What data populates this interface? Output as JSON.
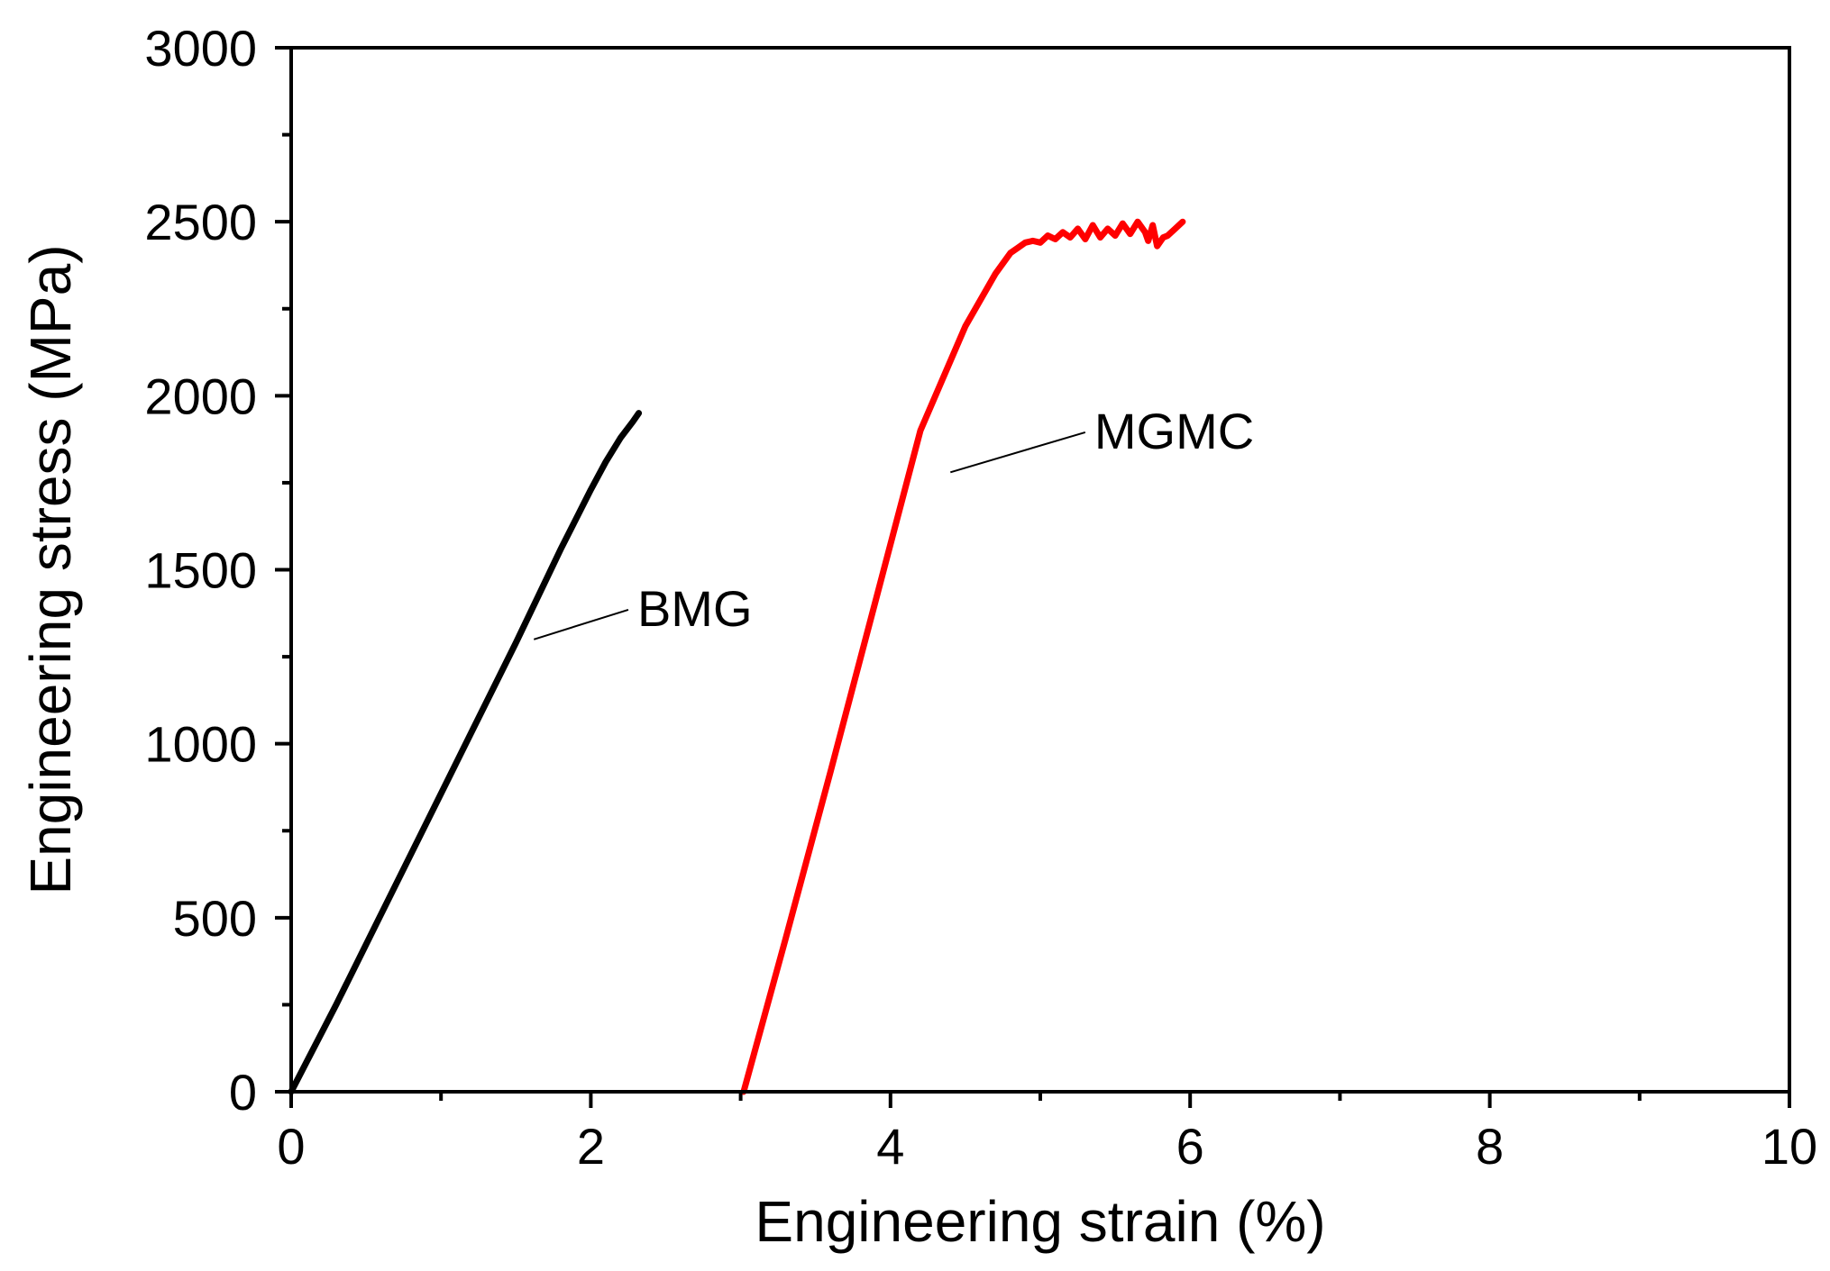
{
  "chart_data": {
    "type": "line",
    "xlabel": "Engineering strain (%)",
    "ylabel": "Engineering stress (MPa)",
    "xlim": [
      0,
      10
    ],
    "ylim": [
      0,
      3000
    ],
    "x_ticks": [
      0,
      2,
      4,
      6,
      8,
      10
    ],
    "y_ticks": [
      0,
      500,
      1000,
      1500,
      2000,
      2500,
      3000
    ],
    "x_tick_labels": [
      "0",
      "2",
      "4",
      "6",
      "8",
      "10"
    ],
    "y_tick_labels": [
      "0",
      "500",
      "1000",
      "1500",
      "2000",
      "2500",
      "3000"
    ],
    "grid": false,
    "series": [
      {
        "name": "BMG",
        "color": "#000000",
        "x": [
          0,
          0.3,
          0.6,
          0.9,
          1.2,
          1.5,
          1.8,
          2.0,
          2.1,
          2.2,
          2.28,
          2.32
        ],
        "y": [
          0,
          250,
          510,
          770,
          1030,
          1290,
          1560,
          1730,
          1810,
          1880,
          1925,
          1950
        ]
      },
      {
        "name": "MGMC",
        "color": "#ff0000",
        "x": [
          3.02,
          3.3,
          3.6,
          3.9,
          4.2,
          4.5,
          4.7,
          4.8,
          4.85,
          4.9,
          4.95,
          5.0,
          5.05,
          5.1,
          5.15,
          5.2,
          5.25,
          5.3,
          5.35,
          5.4,
          5.45,
          5.5,
          5.55,
          5.6,
          5.65,
          5.7,
          5.72,
          5.75,
          5.78,
          5.82,
          5.85,
          5.9,
          5.95
        ],
        "y": [
          0,
          440,
          920,
          1410,
          1900,
          2200,
          2350,
          2410,
          2425,
          2440,
          2445,
          2440,
          2460,
          2450,
          2470,
          2455,
          2480,
          2450,
          2490,
          2455,
          2480,
          2460,
          2495,
          2465,
          2500,
          2470,
          2445,
          2490,
          2430,
          2455,
          2460,
          2480,
          2500
        ]
      }
    ],
    "annotations": [
      {
        "text": "BMG",
        "x_from": 1.62,
        "y_from": 1300,
        "x_to": 2.25,
        "y_to": 1385
      },
      {
        "text": "MGMC",
        "x_from": 4.4,
        "y_from": 1780,
        "x_to": 5.3,
        "y_to": 1895
      }
    ]
  }
}
